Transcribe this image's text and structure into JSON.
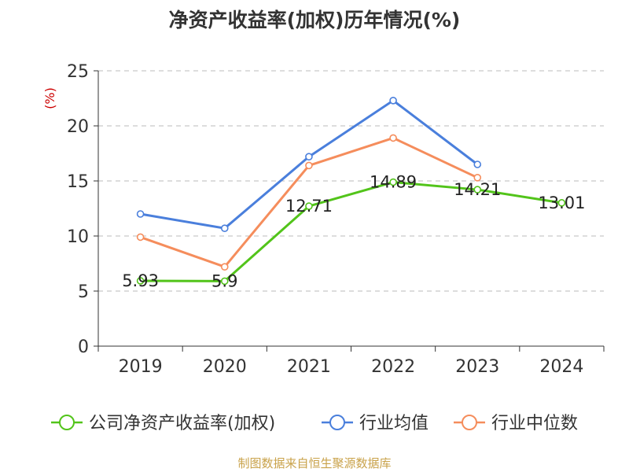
{
  "chart_data": {
    "type": "line",
    "title": "净资产收益率(加权)历年情况(%)",
    "ylabel": "(%)",
    "xlabel": "",
    "categories": [
      "2019",
      "2020",
      "2021",
      "2022",
      "2023",
      "2024"
    ],
    "ylim": [
      0,
      25
    ],
    "yticks": [
      0,
      5,
      10,
      15,
      20,
      25
    ],
    "grid": true,
    "legend_position": "bottom",
    "series": [
      {
        "name": "公司净资产收益率(加权)",
        "color": "#52c41a",
        "values": [
          5.93,
          5.9,
          12.71,
          14.89,
          14.21,
          13.01
        ],
        "labels": [
          "5.93",
          "5.9",
          "12.71",
          "14.89",
          "14.21",
          "13.01"
        ]
      },
      {
        "name": "行业均值",
        "color": "#4a7fdc",
        "values": [
          12.0,
          10.7,
          17.2,
          22.3,
          16.5,
          null
        ]
      },
      {
        "name": "行业中位数",
        "color": "#f58d5c",
        "values": [
          9.9,
          7.2,
          16.4,
          18.9,
          15.3,
          null
        ]
      }
    ]
  },
  "source_note": "制图数据来自恒生聚源数据库"
}
